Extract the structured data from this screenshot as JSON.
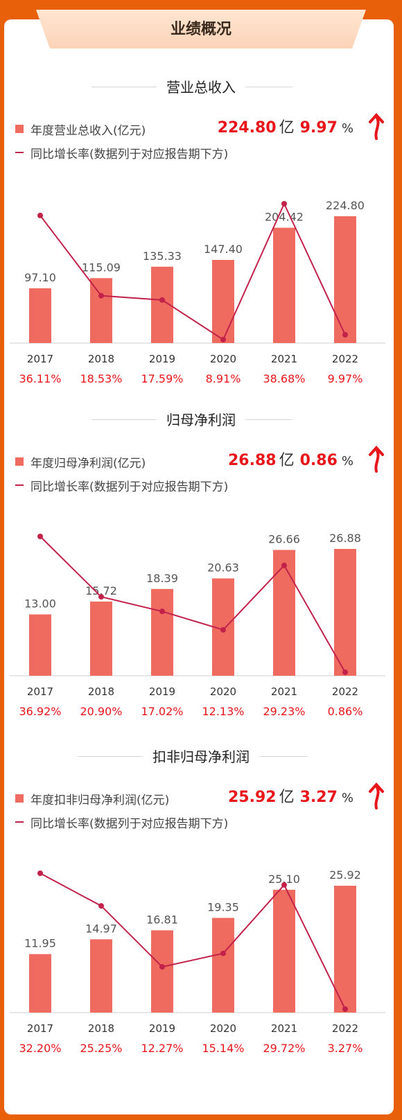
{
  "header": {
    "title": "业绩概况"
  },
  "legend_line_label": "同比增长率(数据列于对应报告期下方)",
  "colors": {
    "bar": "#EF6B60",
    "line": "#C2224A",
    "accent": "#E8161B",
    "background": "#E8600A"
  },
  "sections": [
    {
      "title": "营业总收入",
      "legend_bar_label": "年度营业总收入(亿元)",
      "kpi": {
        "value": "224.80",
        "unit": "亿",
        "rate": "9.97",
        "pct": "%"
      },
      "chart_data": {
        "type": "bar",
        "categories": [
          "2017",
          "2018",
          "2019",
          "2020",
          "2021",
          "2022"
        ],
        "series": [
          {
            "name": "年度营业总收入(亿元)",
            "type": "bar",
            "values": [
              97.1,
              115.09,
              135.33,
              147.4,
              204.42,
              224.8
            ],
            "labels": [
              "97.10",
              "115.09",
              "135.33",
              "147.40",
              "204.42",
              "224.80"
            ]
          },
          {
            "name": "同比增长率",
            "type": "line",
            "values": [
              36.11,
              18.53,
              17.59,
              8.91,
              38.68,
              9.97
            ],
            "labels": [
              "36.11%",
              "18.53%",
              "17.59%",
              "8.91%",
              "38.68%",
              "9.97%"
            ]
          }
        ]
      }
    },
    {
      "title": "归母净利润",
      "legend_bar_label": "年度归母净利润(亿元)",
      "kpi": {
        "value": "26.88",
        "unit": "亿",
        "rate": "0.86",
        "pct": "%"
      },
      "chart_data": {
        "type": "bar",
        "categories": [
          "2017",
          "2018",
          "2019",
          "2020",
          "2021",
          "2022"
        ],
        "series": [
          {
            "name": "年度归母净利润(亿元)",
            "type": "bar",
            "values": [
              13.0,
              15.72,
              18.39,
              20.63,
              26.66,
              26.88
            ],
            "labels": [
              "13.00",
              "15.72",
              "18.39",
              "20.63",
              "26.66",
              "26.88"
            ]
          },
          {
            "name": "同比增长率",
            "type": "line",
            "values": [
              36.92,
              20.9,
              17.02,
              12.13,
              29.23,
              0.86
            ],
            "labels": [
              "36.92%",
              "20.90%",
              "17.02%",
              "12.13%",
              "29.23%",
              "0.86%"
            ]
          }
        ]
      }
    },
    {
      "title": "扣非归母净利润",
      "legend_bar_label": "年度扣非归母净利润(亿元)",
      "kpi": {
        "value": "25.92",
        "unit": "亿",
        "rate": "3.27",
        "pct": "%"
      },
      "chart_data": {
        "type": "bar",
        "categories": [
          "2017",
          "2018",
          "2019",
          "2020",
          "2021",
          "2022"
        ],
        "series": [
          {
            "name": "年度扣非归母净利润(亿元)",
            "type": "bar",
            "values": [
              11.95,
              14.97,
              16.81,
              19.35,
              25.1,
              25.92
            ],
            "labels": [
              "11.95",
              "14.97",
              "16.81",
              "19.35",
              "25.10",
              "25.92"
            ]
          },
          {
            "name": "同比增长率",
            "type": "line",
            "values": [
              32.2,
              25.25,
              12.27,
              15.14,
              29.72,
              3.27
            ],
            "labels": [
              "32.20%",
              "25.25%",
              "12.27%",
              "15.14%",
              "29.72%",
              "3.27%"
            ]
          }
        ]
      }
    }
  ]
}
